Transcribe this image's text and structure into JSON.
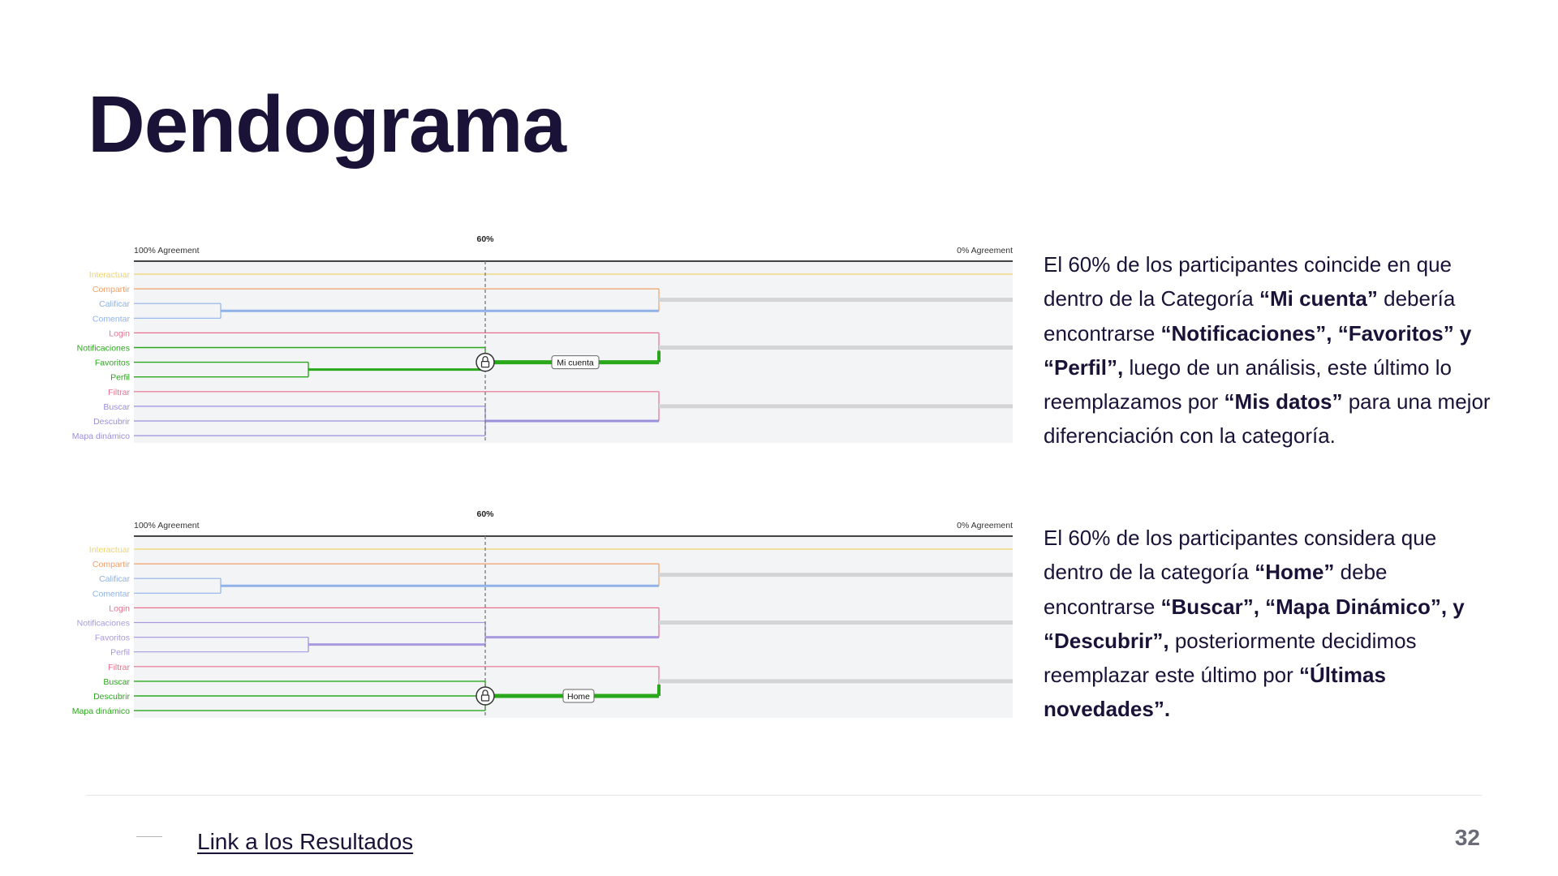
{
  "title": "Dendograma",
  "dendrograms": [
    {
      "label_left": "100% Agreement",
      "label_right": "0% Agreement",
      "threshold_label": "60%",
      "locked_tag": "Mi cuenta",
      "items": [
        {
          "name": "Interactuar",
          "color": "#f2d36b"
        },
        {
          "name": "Compartir",
          "color": "#f0a06a"
        },
        {
          "name": "Calificar",
          "color": "#8fb2e8"
        },
        {
          "name": "Comentar",
          "color": "#8fb2e8"
        },
        {
          "name": "Login",
          "color": "#e8708f"
        },
        {
          "name": "Notificaciones",
          "color": "#2aa81b"
        },
        {
          "name": "Favoritos",
          "color": "#2aa81b"
        },
        {
          "name": "Perfil",
          "color": "#2aa81b"
        },
        {
          "name": "Filtrar",
          "color": "#e8708f"
        },
        {
          "name": "Buscar",
          "color": "#9a8fdc"
        },
        {
          "name": "Descubrir",
          "color": "#9a8fdc"
        },
        {
          "name": "Mapa dinámico",
          "color": "#9a8fdc"
        }
      ]
    },
    {
      "label_left": "100% Agreement",
      "label_right": "0% Agreement",
      "threshold_label": "60%",
      "locked_tag": "Home",
      "items": [
        {
          "name": "Interactuar",
          "color": "#f2d36b"
        },
        {
          "name": "Compartir",
          "color": "#f0a06a"
        },
        {
          "name": "Calificar",
          "color": "#8fb2e8"
        },
        {
          "name": "Comentar",
          "color": "#8fb2e8"
        },
        {
          "name": "Login",
          "color": "#e8708f"
        },
        {
          "name": "Notificaciones",
          "color": "#a99ae0"
        },
        {
          "name": "Favoritos",
          "color": "#a99ae0"
        },
        {
          "name": "Perfil",
          "color": "#a99ae0"
        },
        {
          "name": "Filtrar",
          "color": "#e8708f"
        },
        {
          "name": "Buscar",
          "color": "#2aa81b"
        },
        {
          "name": "Descubrir",
          "color": "#2aa81b"
        },
        {
          "name": "Mapa dinámico",
          "color": "#2aa81b"
        }
      ]
    }
  ],
  "descriptions": [
    [
      {
        "t": "El 60% de los participantes coincide en que dentro de la Categoría ",
        "b": false
      },
      {
        "t": "“Mi cuenta”",
        "b": true
      },
      {
        "t": " debería encontrarse ",
        "b": false
      },
      {
        "t": "“Notificaciones”, “Favoritos” y “Perfil”,",
        "b": true
      },
      {
        "t": " luego de un análisis, este último lo reemplazamos por ",
        "b": false
      },
      {
        "t": "“Mis datos”",
        "b": true
      },
      {
        "t": " para una mejor diferenciación con la categoría.",
        "b": false
      }
    ],
    [
      {
        "t": "El 60% de los participantes considera que dentro de la categoría ",
        "b": false
      },
      {
        "t": "“Home”",
        "b": true
      },
      {
        "t": " debe encontrarse ",
        "b": false
      },
      {
        "t": "“Buscar”, “Mapa Dinámico”, y “Descubrir”,",
        "b": true
      },
      {
        "t": " posteriormente decidimos reemplazar este último por ",
        "b": false
      },
      {
        "t": "“Últimas novedades”.",
        "b": true
      }
    ]
  ],
  "footer": {
    "link_label": "Link a los Resultados",
    "page_number": "32"
  },
  "colors": {
    "title": "#1b1238",
    "highlight": "#2aa81b",
    "chart_bg": "#f3f4f6",
    "merge": "#d4d4d6"
  }
}
